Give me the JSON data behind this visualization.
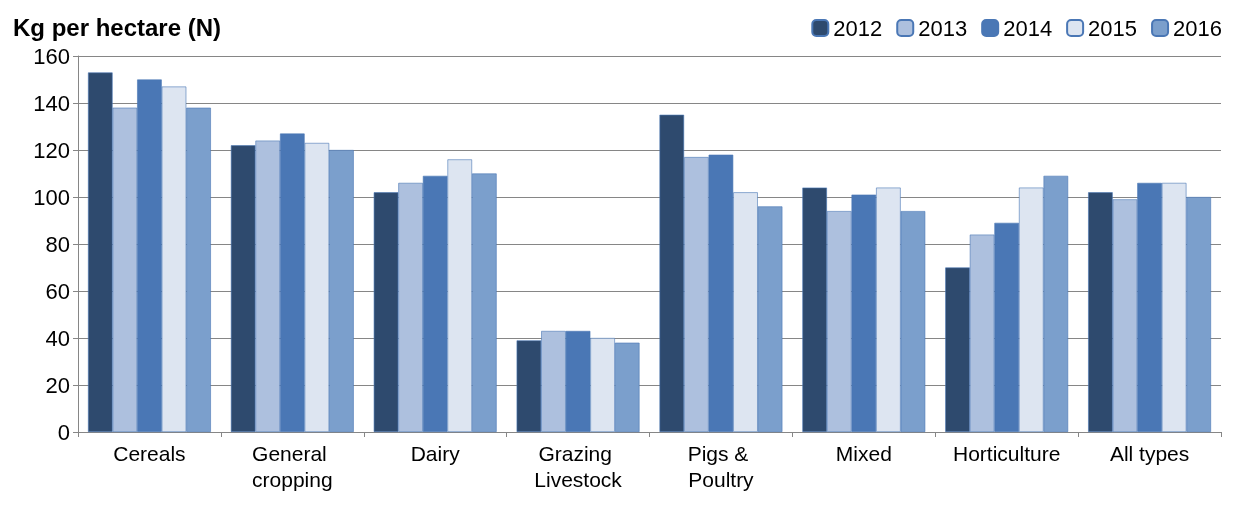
{
  "chart_data": {
    "type": "bar",
    "ylabel": "Kg per hectare (N)",
    "categories": [
      "Cereals",
      "General cropping",
      "Dairy",
      "Grazing Livestock",
      "Pigs & Poultry",
      "Mixed",
      "Horticulture",
      "All types"
    ],
    "series": [
      {
        "name": "2012",
        "color": "#2e4a6e",
        "values": [
          153,
          122,
          102,
          39,
          135,
          104,
          70,
          102
        ]
      },
      {
        "name": "2013",
        "color": "#adc0de",
        "values": [
          138,
          124,
          106,
          43,
          117,
          94,
          84,
          99
        ]
      },
      {
        "name": "2014",
        "color": "#4a77b5",
        "values": [
          150,
          127,
          109,
          43,
          118,
          101,
          89,
          106
        ]
      },
      {
        "name": "2015",
        "color": "#dde5f1",
        "values": [
          147,
          123,
          116,
          40,
          102,
          104,
          104,
          106
        ]
      },
      {
        "name": "2016",
        "color": "#7b9fcc",
        "values": [
          138,
          120,
          110,
          38,
          96,
          94,
          109,
          100
        ]
      }
    ],
    "ylim": [
      0,
      160
    ],
    "yticks": [
      0,
      20,
      40,
      60,
      80,
      100,
      120,
      140,
      160
    ],
    "grid": "y",
    "legend": "top right"
  }
}
